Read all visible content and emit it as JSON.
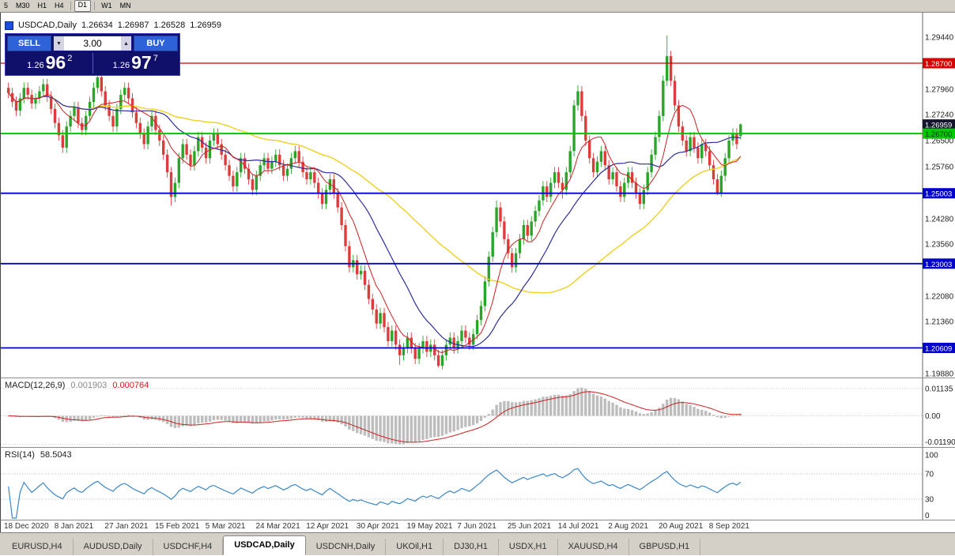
{
  "toolbar": {
    "timeframes": [
      "5",
      "M30",
      "H1",
      "H4",
      "D1",
      "W1",
      "MN"
    ],
    "active": "D1",
    "separators_after": [
      "H4",
      "D1"
    ]
  },
  "chart_header": {
    "symbol_period": "USDCAD,Daily",
    "open": "1.26634",
    "high": "1.26987",
    "low": "1.26528",
    "close": "1.26959"
  },
  "trade_widget": {
    "sell_label": "SELL",
    "buy_label": "BUY",
    "volume": "3.00",
    "spin_down": "▼",
    "spin_up": "▲",
    "sell_price_prefix": "1.26",
    "sell_price_big": "96",
    "sell_price_sup": "2",
    "buy_price_prefix": "1.26",
    "buy_price_big": "97",
    "buy_price_sup": "7"
  },
  "price_axis": {
    "labels": [
      "1.29440",
      "1.27960",
      "1.27240",
      "1.26500",
      "1.25760",
      "1.24280",
      "1.23560",
      "1.22080",
      "1.21360",
      "1.19880"
    ],
    "badges": [
      {
        "text": "1.28700",
        "bg": "#d40000",
        "fg": "#ffffff"
      },
      {
        "text": "1.26959",
        "bg": "#15152e",
        "fg": "#ffffff"
      },
      {
        "text": "1.26700",
        "bg": "#00c800",
        "fg": "#00320a"
      },
      {
        "text": "1.25003",
        "bg": "#0000cd",
        "fg": "#ffffff"
      },
      {
        "text": "1.23003",
        "bg": "#0000cd",
        "fg": "#ffffff"
      },
      {
        "text": "1.20609",
        "bg": "#0000cd",
        "fg": "#ffffff"
      }
    ]
  },
  "indicators": {
    "macd": {
      "name": "MACD(12,26,9)",
      "value1": "0.001903",
      "value2": "0.000764",
      "axis": [
        "0.01135",
        "0.00",
        "-0.01190"
      ],
      "levels": [
        0.01135,
        0,
        -0.0119
      ]
    },
    "rsi": {
      "name": "RSI(14)",
      "value": "58.5043",
      "axis": [
        "100",
        "70",
        "30",
        "0"
      ],
      "dashed_levels": [
        70,
        30
      ]
    }
  },
  "x_axis_labels": [
    "18 Dec 2020",
    "8 Jan 2021",
    "27 Jan 2021",
    "15 Feb 2021",
    "5 Mar 2021",
    "24 Mar 2021",
    "12 Apr 2021",
    "30 Apr 2021",
    "19 May 2021",
    "7 Jun 2021",
    "25 Jun 2021",
    "14 Jul 2021",
    "2 Aug 2021",
    "20 Aug 2021",
    "8 Sep 2021"
  ],
  "candles_per_label": 13,
  "tabs": [
    {
      "label": "EURUSD,H4"
    },
    {
      "label": "AUDUSD,Daily"
    },
    {
      "label": "USDCHF,H4"
    },
    {
      "label": "USDCAD,Daily"
    },
    {
      "label": "USDCNH,Daily"
    },
    {
      "label": "UKOil,H1"
    },
    {
      "label": "DJ30,H1"
    },
    {
      "label": "USDX,H1"
    },
    {
      "label": "XAUUSD,H4"
    },
    {
      "label": "GBPUSD,H1"
    }
  ],
  "active_tab": 3,
  "chart_data": {
    "type": "candlestick",
    "symbol": "USDCAD",
    "period": "Daily",
    "price_range": [
      1.1988,
      1.2944
    ],
    "colors": {
      "up": "#2aa52a",
      "down": "#dd3c3c"
    },
    "ma": {
      "fast_period": 8,
      "fast_color": "#cc2020",
      "mid_period": 21,
      "mid_color": "#2d2da0",
      "slow_period": 55,
      "slow_color": "#f0d022"
    },
    "hlines": [
      {
        "price": 1.287,
        "color": "#d40000",
        "width": 1.3
      },
      {
        "price": 1.267,
        "color": "#00c800",
        "width": 2
      },
      {
        "price": 1.25003,
        "color": "#0000cd",
        "width": 1.8
      },
      {
        "price": 1.23003,
        "color": "#0000cd",
        "width": 1.8
      },
      {
        "price": 1.20609,
        "color": "#0000cd",
        "width": 1.8
      }
    ],
    "ohlc": [
      [
        1.28,
        1.2815,
        1.277,
        1.2785
      ],
      [
        1.2785,
        1.28,
        1.2745,
        1.276
      ],
      [
        1.276,
        1.2775,
        1.272,
        1.2735
      ],
      [
        1.2735,
        1.2785,
        1.272,
        1.277
      ],
      [
        1.277,
        1.2815,
        1.2755,
        1.28
      ],
      [
        1.28,
        1.2815,
        1.2765,
        1.278
      ],
      [
        1.278,
        1.2795,
        1.274,
        1.2755
      ],
      [
        1.2755,
        1.2785,
        1.274,
        1.277
      ],
      [
        1.277,
        1.2805,
        1.2755,
        1.279
      ],
      [
        1.279,
        1.2825,
        1.2775,
        1.281
      ],
      [
        1.281,
        1.2825,
        1.276,
        1.2775
      ],
      [
        1.2775,
        1.279,
        1.2725,
        1.274
      ],
      [
        1.274,
        1.2755,
        1.2685,
        1.27
      ],
      [
        1.27,
        1.2715,
        1.265,
        1.2665
      ],
      [
        1.2665,
        1.268,
        1.2615,
        1.263
      ],
      [
        1.263,
        1.2705,
        1.2615,
        1.269
      ],
      [
        1.269,
        1.2735,
        1.2675,
        1.272
      ],
      [
        1.272,
        1.276,
        1.2705,
        1.2745
      ],
      [
        1.2745,
        1.276,
        1.2685,
        1.27
      ],
      [
        1.27,
        1.2715,
        1.2665,
        1.268
      ],
      [
        1.268,
        1.2735,
        1.2665,
        1.272
      ],
      [
        1.272,
        1.2775,
        1.2705,
        1.276
      ],
      [
        1.276,
        1.2815,
        1.2745,
        1.28
      ],
      [
        1.28,
        1.2845,
        1.2785,
        1.283
      ],
      [
        1.283,
        1.2845,
        1.2775,
        1.279
      ],
      [
        1.279,
        1.2805,
        1.2735,
        1.275
      ],
      [
        1.275,
        1.2765,
        1.2705,
        1.272
      ],
      [
        1.272,
        1.2735,
        1.2675,
        1.269
      ],
      [
        1.269,
        1.2755,
        1.2675,
        1.274
      ],
      [
        1.274,
        1.2795,
        1.2725,
        1.278
      ],
      [
        1.278,
        1.2815,
        1.2765,
        1.28
      ],
      [
        1.28,
        1.2815,
        1.2755,
        1.277
      ],
      [
        1.277,
        1.2785,
        1.2715,
        1.273
      ],
      [
        1.273,
        1.2745,
        1.2685,
        1.27
      ],
      [
        1.27,
        1.2715,
        1.2655,
        1.267
      ],
      [
        1.267,
        1.2685,
        1.2625,
        1.264
      ],
      [
        1.264,
        1.2705,
        1.2625,
        1.269
      ],
      [
        1.269,
        1.2735,
        1.2675,
        1.272
      ],
      [
        1.272,
        1.2735,
        1.2665,
        1.268
      ],
      [
        1.268,
        1.2695,
        1.2635,
        1.265
      ],
      [
        1.265,
        1.2665,
        1.2595,
        1.261
      ],
      [
        1.261,
        1.2625,
        1.2545,
        1.256
      ],
      [
        1.256,
        1.2575,
        1.2465,
        1.249
      ],
      [
        1.249,
        1.2545,
        1.2475,
        1.253
      ],
      [
        1.253,
        1.2615,
        1.2515,
        1.26
      ],
      [
        1.26,
        1.2655,
        1.2585,
        1.264
      ],
      [
        1.264,
        1.2655,
        1.2595,
        1.261
      ],
      [
        1.261,
        1.2625,
        1.2565,
        1.258
      ],
      [
        1.258,
        1.2635,
        1.2565,
        1.262
      ],
      [
        1.262,
        1.2675,
        1.2605,
        1.266
      ],
      [
        1.266,
        1.2675,
        1.2615,
        1.263
      ],
      [
        1.263,
        1.2645,
        1.2585,
        1.26
      ],
      [
        1.26,
        1.2665,
        1.2585,
        1.265
      ],
      [
        1.265,
        1.2685,
        1.2635,
        1.267
      ],
      [
        1.267,
        1.2685,
        1.2625,
        1.264
      ],
      [
        1.264,
        1.2655,
        1.2595,
        1.261
      ],
      [
        1.261,
        1.2625,
        1.2565,
        1.258
      ],
      [
        1.258,
        1.2595,
        1.2535,
        1.255
      ],
      [
        1.255,
        1.2565,
        1.2505,
        1.252
      ],
      [
        1.252,
        1.2575,
        1.2505,
        1.256
      ],
      [
        1.256,
        1.2615,
        1.2545,
        1.26
      ],
      [
        1.26,
        1.2615,
        1.2555,
        1.257
      ],
      [
        1.257,
        1.2585,
        1.2525,
        1.254
      ],
      [
        1.254,
        1.2555,
        1.2495,
        1.251
      ],
      [
        1.251,
        1.2565,
        1.2495,
        1.255
      ],
      [
        1.255,
        1.2595,
        1.2535,
        1.258
      ],
      [
        1.258,
        1.2615,
        1.2565,
        1.26
      ],
      [
        1.26,
        1.2615,
        1.2555,
        1.257
      ],
      [
        1.257,
        1.2605,
        1.2555,
        1.259
      ],
      [
        1.259,
        1.2625,
        1.2575,
        1.261
      ],
      [
        1.261,
        1.2625,
        1.2565,
        1.258
      ],
      [
        1.258,
        1.2595,
        1.2535,
        1.255
      ],
      [
        1.255,
        1.2585,
        1.2535,
        1.257
      ],
      [
        1.257,
        1.2615,
        1.2555,
        1.26
      ],
      [
        1.26,
        1.2635,
        1.2585,
        1.262
      ],
      [
        1.262,
        1.2635,
        1.2575,
        1.259
      ],
      [
        1.259,
        1.2605,
        1.2545,
        1.256
      ],
      [
        1.256,
        1.2575,
        1.2525,
        1.254
      ],
      [
        1.254,
        1.2575,
        1.2525,
        1.256
      ],
      [
        1.256,
        1.2575,
        1.2515,
        1.253
      ],
      [
        1.253,
        1.2545,
        1.2485,
        1.25
      ],
      [
        1.25,
        1.2515,
        1.2455,
        1.247
      ],
      [
        1.247,
        1.2525,
        1.2455,
        1.251
      ],
      [
        1.251,
        1.2555,
        1.2495,
        1.254
      ],
      [
        1.254,
        1.2555,
        1.2485,
        1.25
      ],
      [
        1.25,
        1.2515,
        1.2445,
        1.246
      ],
      [
        1.246,
        1.2475,
        1.2395,
        1.241
      ],
      [
        1.241,
        1.2425,
        1.2335,
        1.235
      ],
      [
        1.235,
        1.2365,
        1.2275,
        1.229
      ],
      [
        1.229,
        1.2325,
        1.2275,
        1.231
      ],
      [
        1.231,
        1.2325,
        1.2255,
        1.227
      ],
      [
        1.227,
        1.2295,
        1.2255,
        1.228
      ],
      [
        1.228,
        1.2295,
        1.2225,
        1.224
      ],
      [
        1.224,
        1.2255,
        1.2185,
        1.22
      ],
      [
        1.22,
        1.2215,
        1.2155,
        1.217
      ],
      [
        1.217,
        1.2185,
        1.2115,
        1.213
      ],
      [
        1.213,
        1.2175,
        1.2115,
        1.216
      ],
      [
        1.216,
        1.2175,
        1.2105,
        1.212
      ],
      [
        1.212,
        1.2135,
        1.2065,
        1.208
      ],
      [
        1.208,
        1.2125,
        1.2065,
        1.211
      ],
      [
        1.211,
        1.2125,
        1.2055,
        1.207
      ],
      [
        1.207,
        1.2085,
        1.2013,
        1.204
      ],
      [
        1.204,
        1.2075,
        1.2025,
        1.206
      ],
      [
        1.206,
        1.2105,
        1.2045,
        1.209
      ],
      [
        1.209,
        1.2105,
        1.2045,
        1.206
      ],
      [
        1.206,
        1.2075,
        1.2015,
        1.203
      ],
      [
        1.203,
        1.2075,
        1.2015,
        1.206
      ],
      [
        1.206,
        1.2095,
        1.2045,
        1.208
      ],
      [
        1.208,
        1.2095,
        1.2035,
        1.205
      ],
      [
        1.205,
        1.2085,
        1.2035,
        1.207
      ],
      [
        1.207,
        1.2085,
        1.2025,
        1.204
      ],
      [
        1.204,
        1.2055,
        1.2005,
        1.201
      ],
      [
        1.201,
        1.2055,
        1.2,
        1.204
      ],
      [
        1.204,
        1.2085,
        1.2025,
        1.207
      ],
      [
        1.207,
        1.2105,
        1.2055,
        1.209
      ],
      [
        1.209,
        1.2105,
        1.2045,
        1.206
      ],
      [
        1.206,
        1.2095,
        1.2045,
        1.208
      ],
      [
        1.208,
        1.2125,
        1.2065,
        1.211
      ],
      [
        1.211,
        1.2125,
        1.2075,
        1.209
      ],
      [
        1.209,
        1.2105,
        1.2055,
        1.207
      ],
      [
        1.207,
        1.2115,
        1.2055,
        1.21
      ],
      [
        1.21,
        1.2155,
        1.2085,
        1.214
      ],
      [
        1.214,
        1.2195,
        1.2125,
        1.218
      ],
      [
        1.218,
        1.2265,
        1.2165,
        1.225
      ],
      [
        1.225,
        1.2335,
        1.2235,
        1.232
      ],
      [
        1.232,
        1.2405,
        1.2305,
        1.239
      ],
      [
        1.239,
        1.248,
        1.2375,
        1.246
      ],
      [
        1.246,
        1.2475,
        1.2405,
        1.242
      ],
      [
        1.242,
        1.2435,
        1.2355,
        1.237
      ],
      [
        1.237,
        1.2385,
        1.2315,
        1.233
      ],
      [
        1.233,
        1.2345,
        1.2275,
        1.229
      ],
      [
        1.229,
        1.2345,
        1.2275,
        1.233
      ],
      [
        1.233,
        1.2385,
        1.2315,
        1.237
      ],
      [
        1.237,
        1.2425,
        1.2355,
        1.241
      ],
      [
        1.241,
        1.2425,
        1.2365,
        1.238
      ],
      [
        1.238,
        1.2435,
        1.2365,
        1.242
      ],
      [
        1.242,
        1.2465,
        1.2405,
        1.245
      ],
      [
        1.245,
        1.2495,
        1.2435,
        1.248
      ],
      [
        1.248,
        1.2535,
        1.2465,
        1.252
      ],
      [
        1.252,
        1.2535,
        1.2475,
        1.249
      ],
      [
        1.249,
        1.2545,
        1.2475,
        1.253
      ],
      [
        1.253,
        1.2575,
        1.2515,
        1.256
      ],
      [
        1.256,
        1.2575,
        1.2515,
        1.253
      ],
      [
        1.253,
        1.2545,
        1.2485,
        1.251
      ],
      [
        1.251,
        1.2575,
        1.2495,
        1.256
      ],
      [
        1.256,
        1.2635,
        1.2545,
        1.262
      ],
      [
        1.262,
        1.2765,
        1.2605,
        1.275
      ],
      [
        1.275,
        1.2807,
        1.2735,
        1.279
      ],
      [
        1.279,
        1.2805,
        1.2705,
        1.272
      ],
      [
        1.272,
        1.2735,
        1.2635,
        1.265
      ],
      [
        1.265,
        1.2665,
        1.2585,
        1.26
      ],
      [
        1.26,
        1.2615,
        1.2545,
        1.256
      ],
      [
        1.256,
        1.2605,
        1.2545,
        1.259
      ],
      [
        1.259,
        1.2635,
        1.2575,
        1.262
      ],
      [
        1.262,
        1.2635,
        1.2565,
        1.258
      ],
      [
        1.258,
        1.2595,
        1.2525,
        1.254
      ],
      [
        1.254,
        1.2575,
        1.2525,
        1.256
      ],
      [
        1.256,
        1.2575,
        1.2505,
        1.252
      ],
      [
        1.252,
        1.2535,
        1.2475,
        1.249
      ],
      [
        1.249,
        1.2545,
        1.2475,
        1.253
      ],
      [
        1.253,
        1.2575,
        1.2515,
        1.256
      ],
      [
        1.256,
        1.2575,
        1.2515,
        1.253
      ],
      [
        1.253,
        1.2545,
        1.2485,
        1.25
      ],
      [
        1.25,
        1.2515,
        1.2455,
        1.247
      ],
      [
        1.247,
        1.2525,
        1.2455,
        1.251
      ],
      [
        1.251,
        1.2575,
        1.2495,
        1.256
      ],
      [
        1.256,
        1.2625,
        1.2545,
        1.261
      ],
      [
        1.261,
        1.2675,
        1.2595,
        1.266
      ],
      [
        1.266,
        1.2735,
        1.2645,
        1.272
      ],
      [
        1.272,
        1.2835,
        1.2705,
        1.282
      ],
      [
        1.282,
        1.2949,
        1.2805,
        1.289
      ],
      [
        1.289,
        1.2905,
        1.2805,
        1.282
      ],
      [
        1.282,
        1.2835,
        1.2735,
        1.275
      ],
      [
        1.275,
        1.2765,
        1.2675,
        1.269
      ],
      [
        1.269,
        1.2705,
        1.2635,
        1.265
      ],
      [
        1.265,
        1.2665,
        1.2605,
        1.262
      ],
      [
        1.262,
        1.2675,
        1.2605,
        1.266
      ],
      [
        1.266,
        1.2675,
        1.2615,
        1.263
      ],
      [
        1.263,
        1.2645,
        1.2585,
        1.26
      ],
      [
        1.26,
        1.2655,
        1.2585,
        1.264
      ],
      [
        1.264,
        1.2655,
        1.2605,
        1.262
      ],
      [
        1.262,
        1.2635,
        1.2565,
        1.258
      ],
      [
        1.258,
        1.2595,
        1.2525,
        1.254
      ],
      [
        1.254,
        1.2555,
        1.2495,
        1.25
      ],
      [
        1.25,
        1.2565,
        1.249,
        1.255
      ],
      [
        1.255,
        1.2615,
        1.2535,
        1.26
      ],
      [
        1.26,
        1.2665,
        1.2585,
        1.265
      ],
      [
        1.265,
        1.2685,
        1.2635,
        1.267
      ],
      [
        1.267,
        1.2685,
        1.2625,
        1.264
      ],
      [
        1.2663,
        1.2699,
        1.2653,
        1.2696
      ]
    ]
  }
}
